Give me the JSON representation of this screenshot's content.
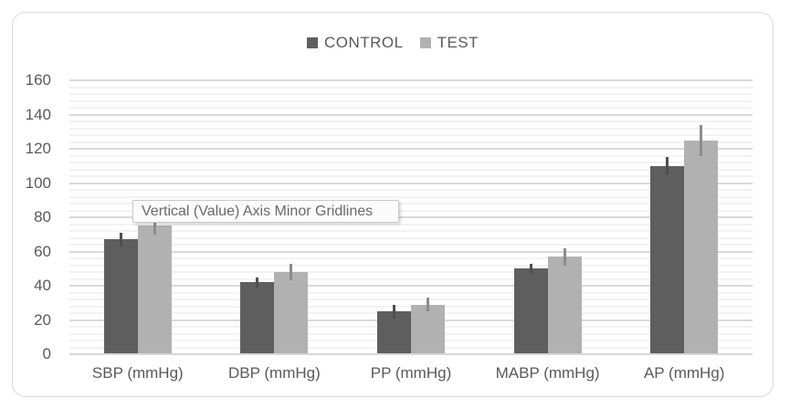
{
  "tooltip": {
    "text": "Vertical (Value) Axis Minor Gridlines"
  },
  "legend": {
    "position": "top",
    "items": [
      {
        "label": "CONTROL",
        "color": "#5e5e5e"
      },
      {
        "label": "TEST",
        "color": "#b1b1b1"
      }
    ]
  },
  "colors": {
    "control_bar": "#5e5e5e",
    "test_bar": "#b1b1b1",
    "control_error": "#4f4f4f",
    "test_error": "#8c8c8c",
    "major_gridline": "#d9d9d9",
    "minor_gridline": "#f2f2f2",
    "axis_text": "#595959",
    "frame_border": "#d9d9d9"
  },
  "chart_data": {
    "type": "bar",
    "title": "",
    "xlabel": "",
    "ylabel": "",
    "categories": [
      "SBP (mmHg)",
      "DBP (mmHg)",
      "PP (mmHg)",
      "MABP (mmHg)",
      "AP (mmHg)"
    ],
    "series": [
      {
        "name": "CONTROL",
        "color": "#5e5e5e",
        "values": [
          67,
          42,
          25,
          50,
          110
        ],
        "errors": [
          4,
          3,
          4,
          3,
          5
        ]
      },
      {
        "name": "TEST",
        "color": "#b1b1b1",
        "values": [
          75,
          48,
          29,
          57,
          125
        ],
        "errors": [
          5,
          5,
          4,
          5,
          9
        ]
      }
    ],
    "ylim": [
      0,
      160
    ],
    "y_major_step": 20,
    "y_minor_step": 4,
    "grid": "major+minor",
    "legend_position": "top"
  }
}
